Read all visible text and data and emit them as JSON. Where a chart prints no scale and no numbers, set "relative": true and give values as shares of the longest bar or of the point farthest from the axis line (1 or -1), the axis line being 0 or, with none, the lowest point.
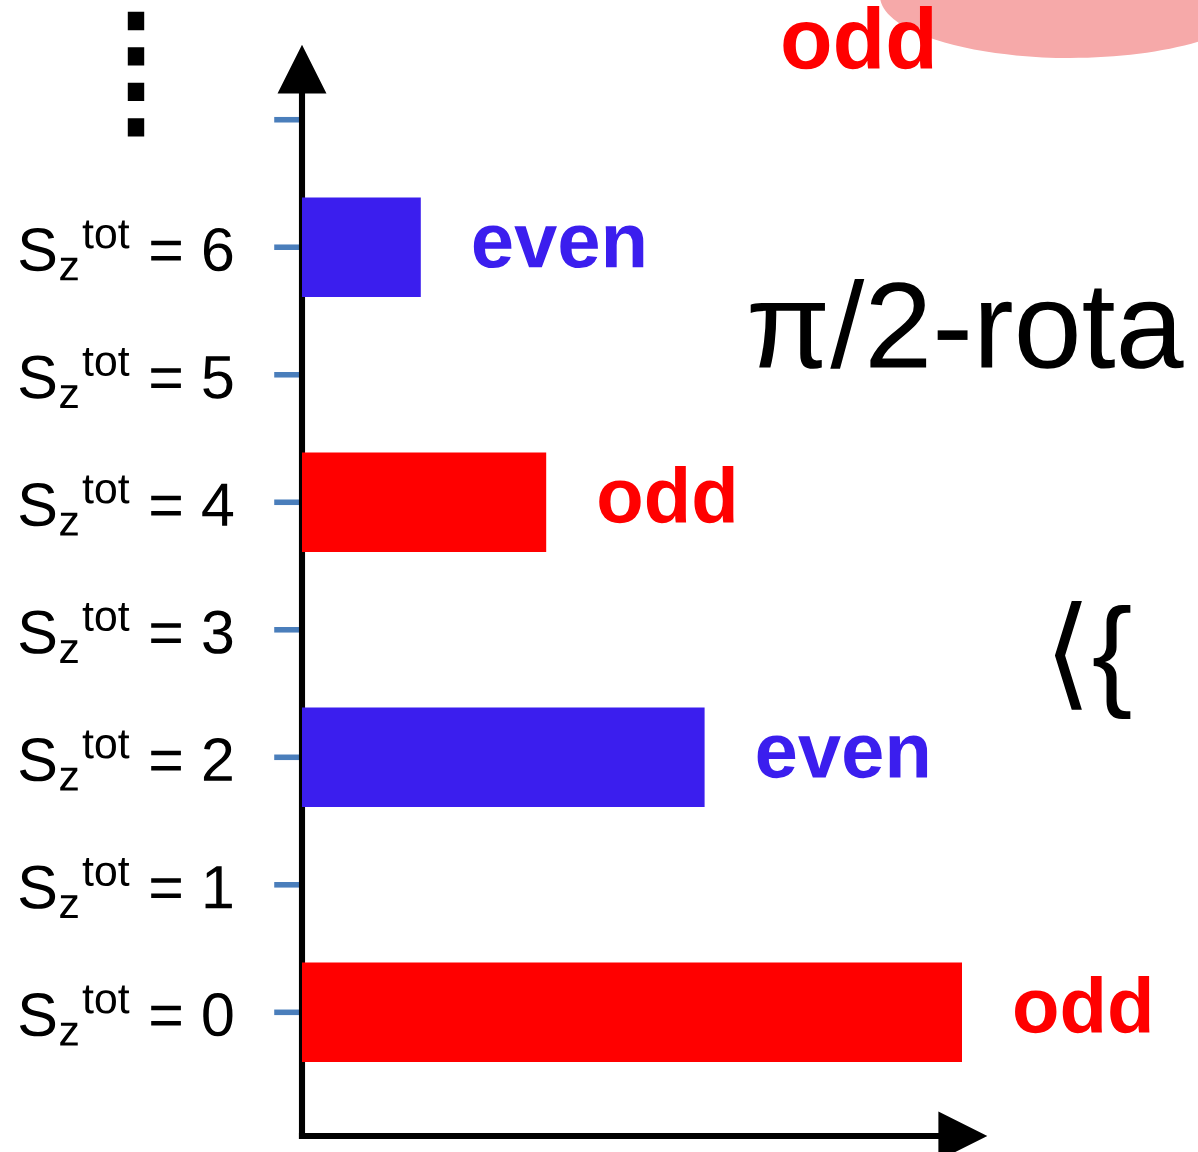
{
  "chart_data": {
    "type": "bar",
    "orientation": "horizontal",
    "relative": true,
    "categories": [
      null,
      "S$_{z}$$^{tot}$ = 6",
      "S$_{z}$$^{tot}$ = 5",
      "S$_{z}$$^{tot}$ = 4",
      "S$_{z}$$^{tot}$ = 3",
      "S$_{z}$$^{tot}$ = 2",
      "S$_{z}$$^{tot}$ = 1",
      "S$_{z}$$^{tot}$ = 0"
    ],
    "values": [
      null,
      0.18,
      null,
      0.37,
      null,
      0.61,
      null,
      1
    ],
    "colors": [
      null,
      "#3b1eee",
      null,
      "#ff0000",
      null,
      "#3b1eee",
      null,
      "#ff0000"
    ],
    "annotations": [
      "⁞",
      "odd",
      "π/2-rota",
      "⟨{",
      {
        "text": "even",
        "x": 0.18,
        "y": "S$_{z}$$^{tot}$ = 6"
      },
      {
        "text": "odd",
        "x": 0.37,
        "y": "S$_{z}$$^{tot}$ = 4"
      },
      {
        "text": "even",
        "x": 0.61,
        "y": "S$_{z}$$^{tot}$ = 2"
      },
      {
        "text": "odd",
        "x": 1,
        "y": "S$_{z}$$^{tot}$ = 0"
      }
    ]
  }
}
